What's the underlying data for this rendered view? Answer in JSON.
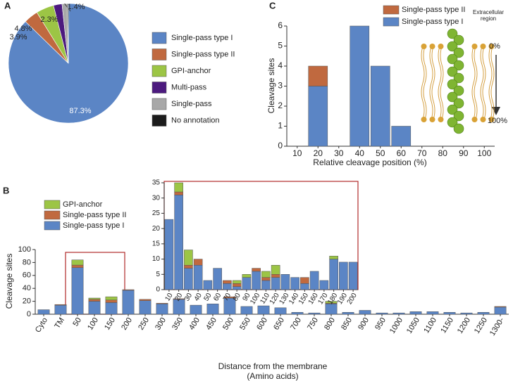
{
  "chart_data": [
    {
      "type": "pie",
      "panel": "A",
      "categories": [
        "Single-pass type I",
        "Single-pass type II",
        "GPI-anchor",
        "Multi-pass",
        "Single-pass",
        "No annotation"
      ],
      "values": [
        87.3,
        3.9,
        4.8,
        2.3,
        1.4,
        0.3
      ],
      "value_labels": [
        "87.3%",
        "3.9%",
        "4.8%",
        "2.3%",
        "1.4%",
        null
      ],
      "colors": [
        "#5b85c5",
        "#c0693f",
        "#9cc545",
        "#4c1a7e",
        "#a8a8a8",
        "#1c1c1c"
      ]
    },
    {
      "type": "bar",
      "panel": "C",
      "stacked": true,
      "categories": [
        "10",
        "20",
        "30",
        "40",
        "50",
        "60",
        "70",
        "80",
        "90",
        "100"
      ],
      "series": [
        {
          "name": "Single-pass type I",
          "color": "#5b85c5",
          "values": [
            0,
            3,
            0,
            6,
            4,
            1,
            0,
            0,
            0,
            0
          ]
        },
        {
          "name": "Single-pass type II",
          "color": "#c0693f",
          "values": [
            0,
            1,
            0,
            0,
            0,
            0,
            0,
            0,
            0,
            0
          ]
        }
      ],
      "ylim": [
        0,
        6
      ],
      "yticks": [
        0,
        1,
        2,
        3,
        4,
        5,
        6
      ],
      "ylabel": "Cleavage sites",
      "xlabel": "Relative cleavage position (%)",
      "annotations": [
        "Extracellular",
        "region",
        "0%",
        "100%"
      ]
    },
    {
      "type": "bar",
      "panel": "B",
      "stacked": true,
      "categories": [
        "Cyto",
        "TM",
        "50",
        "100",
        "150",
        "200",
        "250",
        "300",
        "350",
        "400",
        "450",
        "500",
        "550",
        "600",
        "650",
        "700",
        "750",
        "800",
        "850",
        "900",
        "950",
        "1000",
        "1050",
        "1100",
        "1150",
        "1200",
        "1250",
        "1300-"
      ],
      "series": [
        {
          "name": "Single-pass type I",
          "color": "#5b85c5",
          "values": [
            7,
            14,
            72,
            20,
            18,
            37,
            21,
            16,
            23,
            14,
            16,
            25,
            12,
            13,
            10,
            3,
            2,
            16,
            3,
            6,
            2,
            2,
            4,
            4,
            3,
            2,
            3,
            11
          ]
        },
        {
          "name": "Single-pass type II",
          "color": "#c0693f",
          "values": [
            0,
            1,
            4,
            3,
            4,
            1,
            2,
            1,
            1,
            0,
            0,
            2,
            0,
            0,
            0,
            0,
            0,
            1,
            0,
            0,
            0,
            0,
            0,
            0,
            0,
            0,
            0,
            1
          ]
        },
        {
          "name": "GPI-anchor",
          "color": "#9cc545",
          "values": [
            0,
            0,
            8,
            2,
            5,
            0,
            0,
            0,
            0,
            0,
            0,
            0,
            0,
            0,
            0,
            0,
            0,
            3,
            0,
            0,
            0,
            0,
            0,
            0,
            0,
            0,
            0,
            0
          ]
        }
      ],
      "ylim": [
        0,
        100
      ],
      "yticks": [
        0,
        20,
        40,
        60,
        80,
        100
      ],
      "ylabel": "Cleavage sites",
      "xlabel": [
        "Distance from the membrane",
        "(Amino acids)"
      ]
    },
    {
      "type": "bar",
      "stacked": true,
      "categories": [
        "10",
        "20",
        "30",
        "40",
        "50",
        "60",
        "70",
        "80",
        "90",
        "100",
        "110",
        "120",
        "130",
        "140",
        "150",
        "160",
        "170",
        "180",
        "190",
        "200"
      ],
      "series": [
        {
          "color": "#5b85c5",
          "values": [
            23,
            31,
            7,
            8,
            3,
            7,
            2,
            1,
            4,
            6,
            3,
            4,
            5,
            4,
            2,
            6,
            3,
            10,
            9,
            9
          ]
        },
        {
          "color": "#c0693f",
          "values": [
            0,
            1,
            1,
            2,
            0,
            0,
            1,
            1,
            0,
            1,
            1,
            1,
            0,
            0,
            2,
            0,
            0,
            0,
            0,
            0
          ]
        },
        {
          "color": "#9cc545",
          "values": [
            0,
            3,
            5,
            0,
            0,
            0,
            0,
            1,
            1,
            0,
            2,
            3,
            0,
            0,
            0,
            0,
            0,
            1,
            0,
            0
          ]
        }
      ],
      "ylim": [
        0,
        35
      ],
      "yticks": [
        0,
        5,
        10,
        15,
        20,
        25,
        30,
        35
      ]
    }
  ]
}
